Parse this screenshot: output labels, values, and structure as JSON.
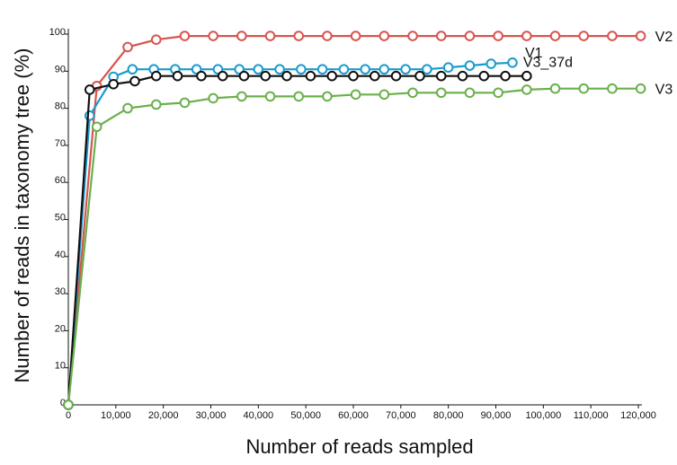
{
  "chart_data": {
    "type": "line",
    "title": "",
    "xlabel": "Number of reads sampled",
    "ylabel": "Number of reads in taxonomy tree (%)",
    "xlim": [
      0,
      120000
    ],
    "ylim": [
      0,
      100
    ],
    "x_ticks": [
      0,
      10000,
      20000,
      30000,
      40000,
      50000,
      60000,
      70000,
      80000,
      90000,
      100000,
      110000,
      120000
    ],
    "x_tick_labels": [
      "0",
      "10,000",
      "20,000",
      "30,000",
      "40,000",
      "50,000",
      "60,000",
      "70,000",
      "80,000",
      "90,000",
      "100,000",
      "110,000",
      "120,000"
    ],
    "y_ticks": [
      0,
      10,
      20,
      30,
      40,
      50,
      60,
      70,
      80,
      90,
      100
    ],
    "y_tick_labels": [
      "0",
      "10",
      "20",
      "30",
      "40",
      "50",
      "60",
      "70",
      "80",
      "90",
      "100"
    ],
    "grid": false,
    "legend": "line-end labels",
    "series": [
      {
        "name": "V2",
        "color": "#d9534f",
        "x": [
          0,
          6000,
          12500,
          18500,
          24500,
          30500,
          36500,
          42500,
          48500,
          54500,
          60500,
          66500,
          72500,
          78500,
          84500,
          90500,
          96500,
          102500,
          108500,
          114500,
          120500
        ],
        "y": [
          0,
          86,
          96.5,
          98.5,
          99.5,
          99.5,
          99.5,
          99.5,
          99.5,
          99.5,
          99.5,
          99.5,
          99.5,
          99.5,
          99.5,
          99.5,
          99.5,
          99.5,
          99.5,
          99.5,
          99.5
        ]
      },
      {
        "name": "V1",
        "color": "#1a9bcf",
        "x": [
          0,
          4500,
          9500,
          13500,
          18000,
          22500,
          27000,
          31500,
          36000,
          40000,
          44500,
          49000,
          53500,
          58000,
          62500,
          66500,
          71000,
          75500,
          80000,
          84500,
          89000,
          93500
        ],
        "y": [
          0,
          78,
          88.5,
          90.5,
          90.5,
          90.5,
          90.5,
          90.5,
          90.5,
          90.5,
          90.5,
          90.5,
          90.5,
          90.5,
          90.5,
          90.5,
          90.5,
          90.5,
          91,
          91.5,
          92,
          92.3
        ]
      },
      {
        "name": "V3_37d",
        "color": "#111111",
        "x": [
          0,
          4500,
          9500,
          14000,
          18500,
          23000,
          28000,
          32500,
          37000,
          41500,
          46000,
          51000,
          55500,
          60000,
          64500,
          69000,
          74000,
          78500,
          83000,
          87500,
          92000,
          96500
        ],
        "y": [
          0,
          85,
          86.5,
          87.3,
          88.7,
          88.7,
          88.7,
          88.7,
          88.7,
          88.7,
          88.7,
          88.7,
          88.7,
          88.7,
          88.7,
          88.7,
          88.7,
          88.7,
          88.7,
          88.7,
          88.7,
          88.7
        ]
      },
      {
        "name": "V3",
        "color": "#6ab04c",
        "x": [
          0,
          6000,
          12500,
          18500,
          24500,
          30500,
          36500,
          42500,
          48500,
          54500,
          60500,
          66500,
          72500,
          78500,
          84500,
          90500,
          96500,
          102500,
          108500,
          114500,
          120500
        ],
        "y": [
          0,
          75,
          80,
          81,
          81.5,
          82.7,
          83.2,
          83.2,
          83.2,
          83.2,
          83.7,
          83.7,
          84.2,
          84.2,
          84.2,
          84.2,
          85,
          85.3,
          85.3,
          85.3,
          85.3
        ]
      }
    ]
  }
}
